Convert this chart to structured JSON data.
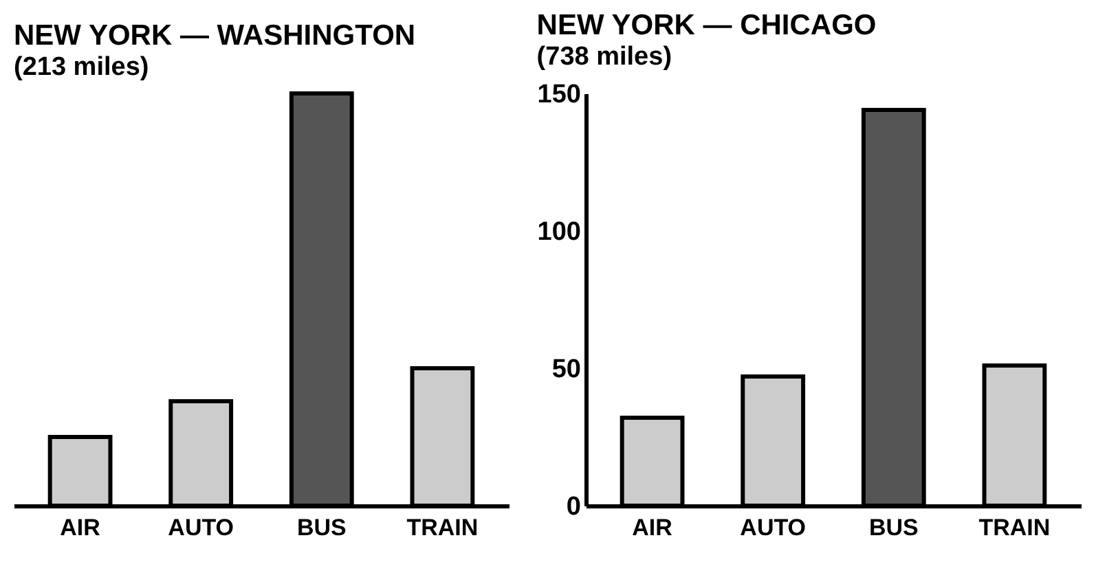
{
  "chart_data": [
    {
      "type": "bar",
      "title": "NEW YORK — WASHINGTON",
      "subtitle": "(213 miles)",
      "categories": [
        "AIR",
        "AUTO",
        "BUS",
        "TRAIN"
      ],
      "values": [
        25,
        38,
        150,
        50
      ],
      "colors": [
        "#cccccc",
        "#cccccc",
        "#555555",
        "#cccccc"
      ],
      "ylim": [
        0,
        150
      ],
      "yticks": [
        0,
        50,
        100,
        150
      ],
      "tick_labels": "x"
    },
    {
      "type": "bar",
      "title": "NEW YORK — CHICAGO",
      "subtitle": "(738 miles)",
      "categories": [
        "AIR",
        "AUTO",
        "BUS",
        "TRAIN"
      ],
      "values": [
        32,
        47,
        144,
        51
      ],
      "colors": [
        "#cccccc",
        "#cccccc",
        "#555555",
        "#cccccc"
      ],
      "ylim": [
        0,
        150
      ],
      "yticks": [
        0,
        50,
        100,
        150
      ]
    }
  ]
}
